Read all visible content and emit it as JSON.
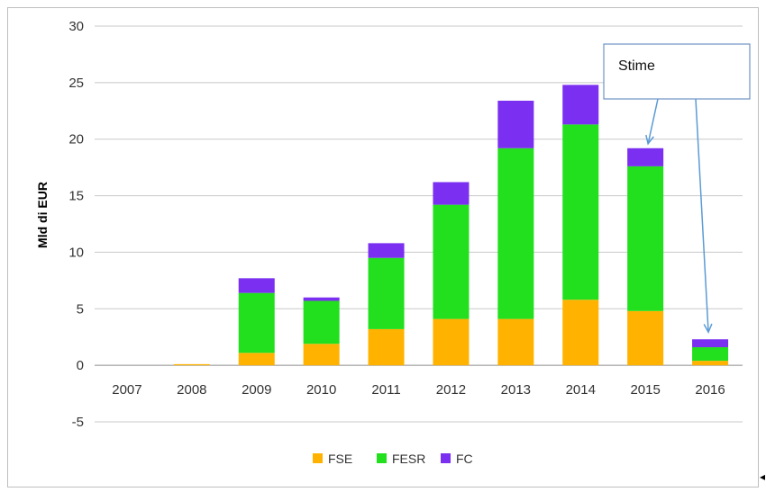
{
  "chart_data": {
    "type": "bar",
    "stacked": true,
    "categories": [
      "2007",
      "2008",
      "2009",
      "2010",
      "2011",
      "2012",
      "2013",
      "2014",
      "2015",
      "2016"
    ],
    "series": [
      {
        "name": "FSE",
        "color": "#ffb300",
        "values": [
          0,
          0.1,
          1.1,
          1.9,
          3.2,
          4.1,
          4.1,
          5.8,
          4.8,
          0.4
        ]
      },
      {
        "name": "FESR",
        "color": "#22e01e",
        "values": [
          0,
          0,
          5.3,
          3.8,
          6.3,
          10.1,
          15.1,
          15.5,
          12.8,
          1.2
        ]
      },
      {
        "name": "FC",
        "color": "#7b2ff0",
        "values": [
          0,
          0,
          1.3,
          0.3,
          1.3,
          2.0,
          4.2,
          3.5,
          1.6,
          0.7
        ]
      }
    ],
    "title": "",
    "xlabel": "",
    "ylabel": "Mld di EUR",
    "ylim": [
      -5,
      30
    ],
    "yticks": [
      -5,
      0,
      5,
      10,
      15,
      20,
      25,
      30
    ],
    "grid": true,
    "legend_position": "bottom-center",
    "annotation": {
      "text": "Stime",
      "points_to": [
        "2015",
        "2016"
      ]
    }
  },
  "page_marker": "◂"
}
